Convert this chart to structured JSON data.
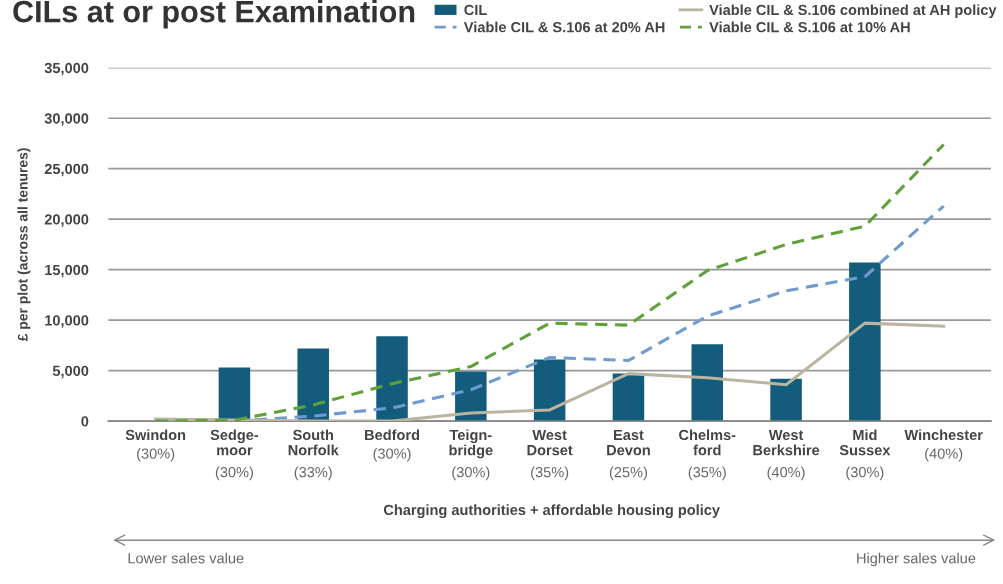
{
  "chart_data": {
    "type": "bar",
    "title": "CILs at or post Examination",
    "ylabel": "£ per plot (across all tenures)",
    "xlabel": "Charging authorities + affordable housing policy",
    "categories": [
      "Swindon\n(30%)",
      "Sedge-\nmoor\n(30%)",
      "South\nNorfolk\n(33%)",
      "Bedford\n(30%)",
      "Teign-\nbridge\n(30%)",
      "West\nDorset\n(35%)",
      "East\nDevon\n(25%)",
      "Chelms-\nford\n(35%)",
      "West\nBerkshire\n(40%)",
      "Mid\nSussex\n(30%)",
      "Winchester\n(40%)"
    ],
    "series": [
      {
        "name": "CIL",
        "color": "#145c7c",
        "values": [
          null,
          5300,
          7200,
          8400,
          4900,
          6100,
          4700,
          7600,
          4200,
          15700,
          null
        ]
      },
      {
        "name": "Viable CIL & S.106 at 20% AH",
        "type": "line",
        "line_style": "dashed",
        "color": "#6f9bd1",
        "values": [
          0,
          0,
          500,
          1300,
          3100,
          6300,
          6000,
          10400,
          12900,
          14300,
          21300
        ]
      },
      {
        "name": "Viable CIL & S.106 combined at AH policy",
        "type": "line",
        "line_style": "solid",
        "color": "#bab4a0",
        "values": [
          200,
          100,
          0,
          0,
          800,
          1100,
          4700,
          4300,
          3600,
          9700,
          9400
        ]
      },
      {
        "name": "Viable CIL & S.106 at 10% AH",
        "type": "line",
        "line_style": "dashed",
        "color": "#5fa03a",
        "values": [
          0,
          100,
          1600,
          3700,
          5400,
          9700,
          9500,
          14900,
          17500,
          19300,
          27400
        ]
      }
    ],
    "ylim": [
      0,
      35000
    ],
    "yticks": [
      0,
      {
        "value": 5000,
        "label": "5,000"
      },
      {
        "value": 10000,
        "label": "10,000"
      },
      {
        "value": 15000,
        "label": "15,000"
      },
      {
        "value": 20000,
        "label": "20,000"
      },
      {
        "value": 25000,
        "label": "25,000"
      },
      {
        "value": 30000,
        "label": "30,000"
      },
      {
        "value": 35000,
        "label": "35,000"
      }
    ],
    "grid": "y",
    "legend": "top right",
    "marker": "none",
    "annotations": [
      "Lower sales value",
      "Higher sales value"
    ]
  }
}
